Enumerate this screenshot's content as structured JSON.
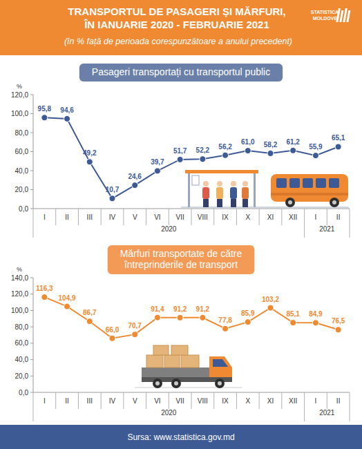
{
  "header": {
    "title": [
      "TRANSPORTUL DE PASAGERI ȘI MĂRFURI,",
      "ÎN IANUARIE 2020 - FEBRUARIE 2021"
    ],
    "subtitle": "(în % față de perioada corespunzătoare a anului precedent)",
    "logo": [
      "STATISTICA",
      "MOLDOVEI"
    ]
  },
  "chart_data": [
    {
      "type": "line",
      "title": "Pasageri transportați cu transportul public",
      "ylabel": "%",
      "categories": [
        "I",
        "II",
        "III",
        "IV",
        "V",
        "VI",
        "VII",
        "VIII",
        "IX",
        "X",
        "XI",
        "XII",
        "I",
        "II"
      ],
      "category_groups": [
        {
          "label": "2020",
          "count": 12
        },
        {
          "label": "2021",
          "count": 2
        }
      ],
      "values": [
        95.8,
        94.6,
        49.2,
        10.7,
        24.6,
        39.7,
        51.7,
        52.2,
        56.2,
        61.0,
        58.2,
        61.2,
        55.9,
        65.1
      ],
      "value_labels": [
        "95,8",
        "94,6",
        "49,2",
        "10,7",
        "24,6",
        "39,7",
        "51,7",
        "52,2",
        "56,2",
        "61,0",
        "58,2",
        "61,2",
        "55,9",
        "65,1"
      ],
      "color": "#3e5a95",
      "marker": "circle",
      "data_labels": true,
      "grid": false,
      "ylim": [
        0,
        120
      ],
      "yticks": [
        {
          "value": 0,
          "label": "0,0"
        },
        {
          "value": 20,
          "label": "20,0"
        },
        {
          "value": 40,
          "label": "40,0"
        },
        {
          "value": 60,
          "label": "60,0"
        },
        {
          "value": 80,
          "label": "80,0"
        },
        {
          "value": 100,
          "label": "100,0"
        },
        {
          "value": 120,
          "label": "120,0"
        }
      ]
    },
    {
      "type": "line",
      "title": "Mărfuri transportate de către întreprinderile de transport",
      "ylabel": "%",
      "categories": [
        "I",
        "II",
        "III",
        "IV",
        "V",
        "VI",
        "VII",
        "VIII",
        "IX",
        "X",
        "XI",
        "XII",
        "I",
        "II"
      ],
      "category_groups": [
        {
          "label": "2020",
          "count": 12
        },
        {
          "label": "2021",
          "count": 2
        }
      ],
      "values": [
        116.3,
        104.9,
        86.7,
        66.0,
        70.7,
        91.4,
        91.2,
        91.2,
        77.8,
        85.9,
        103.2,
        85.1,
        84.9,
        76.5
      ],
      "value_labels": [
        "116,3",
        "104,9",
        "86,7",
        "66,0",
        "70,7",
        "91,4",
        "91,2",
        "91,2",
        "77,8",
        "85,9",
        "103,2",
        "85,1",
        "84,9",
        "76,5"
      ],
      "color": "#f08a32",
      "marker": "circle",
      "data_labels": true,
      "grid": false,
      "ylim": [
        0,
        140
      ],
      "yticks": [
        {
          "value": 0,
          "label": "0,0"
        },
        {
          "value": 20,
          "label": "20,0"
        },
        {
          "value": 40,
          "label": "40,0"
        },
        {
          "value": 60,
          "label": "60,0"
        },
        {
          "value": 80,
          "label": "80,0"
        },
        {
          "value": 100,
          "label": "100,0"
        },
        {
          "value": 120,
          "label": "120,0"
        },
        {
          "value": 140,
          "label": "140,0"
        }
      ]
    }
  ],
  "footer": {
    "source": "Sursa: www.statistica.gov.md"
  }
}
